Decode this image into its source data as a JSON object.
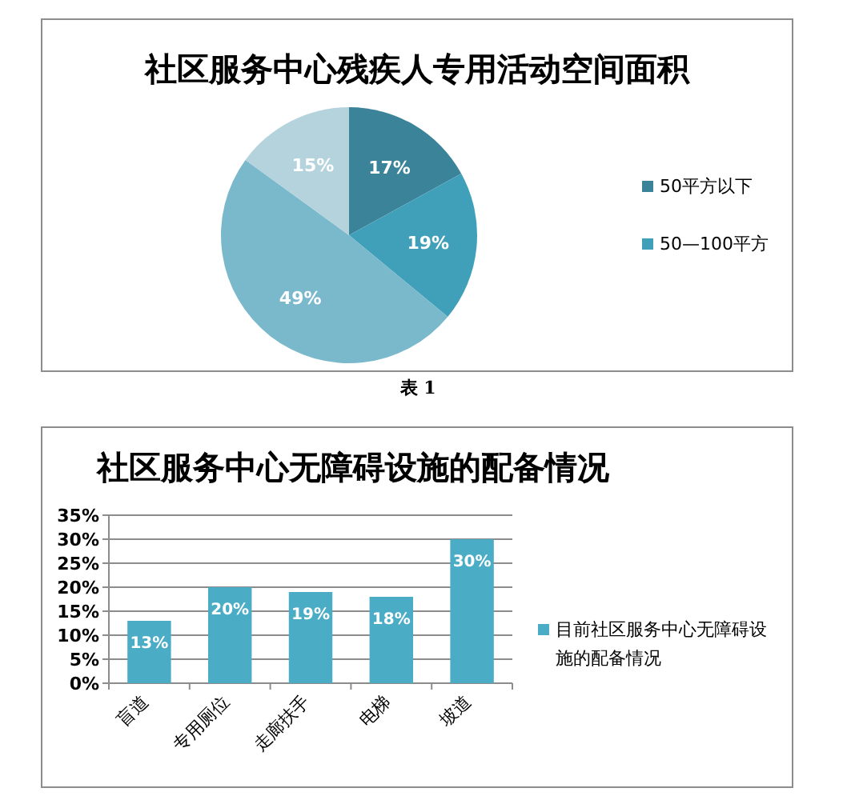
{
  "chart_data": [
    {
      "type": "pie",
      "title": "社区服务中心残疾人专用活动空间面积",
      "categories": [
        "50平方以下",
        "50—100平方",
        null,
        null
      ],
      "values": [
        17,
        19,
        49,
        15
      ],
      "colors": [
        "#3a8399",
        "#41a0b9",
        "#7ab8cc",
        "#b4d3dd"
      ],
      "value_labels": [
        "17%",
        "19%",
        "49%",
        "15%"
      ],
      "legend": "right",
      "annotations": [
        "表 1"
      ]
    },
    {
      "type": "bar",
      "title": "社区服务中心无障碍设施的配备情况",
      "categories": [
        "盲道",
        "专用厕位",
        "走廊扶手",
        "电梯",
        "坡道"
      ],
      "series": [
        {
          "name": "目前社区服务中心无障碍设施的配备情况",
          "color": "#4bacc6",
          "values": [
            13,
            20,
            19,
            18,
            30
          ],
          "value_labels": [
            "13%",
            "20%",
            "19%",
            "18%",
            "30%"
          ]
        }
      ],
      "ylim": [
        0,
        35
      ],
      "yticks": [
        {
          "value": 0,
          "label": "0%"
        },
        {
          "value": 5,
          "label": "5%"
        },
        {
          "value": 10,
          "label": "10%"
        },
        {
          "value": 15,
          "label": "15%"
        },
        {
          "value": 20,
          "label": "20%"
        },
        {
          "value": 25,
          "label": "25%"
        },
        {
          "value": 30,
          "label": "30%"
        },
        {
          "value": 35,
          "label": "35%"
        }
      ],
      "grid": "y",
      "legend": "right"
    }
  ]
}
